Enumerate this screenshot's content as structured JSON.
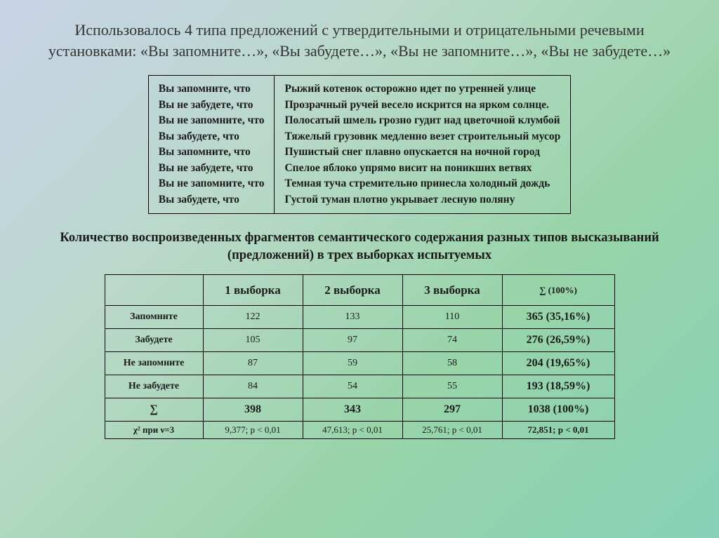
{
  "title": "Использовалось 4 типа предложений с утвердительными и отрицательными речевыми установками: «Вы запомните…», «Вы забудете…», «Вы не запомните…», «Вы не забудете…»",
  "sentences": {
    "prompts": [
      "Вы запомните, что",
      "Вы не забудете, что",
      "Вы не запомните, что",
      "Вы забудете, что",
      "Вы запомните, что",
      "Вы не забудете, что",
      "Вы не запомните, что",
      "Вы забудете, что"
    ],
    "content": [
      "Рыжий котенок осторожно идет по утренней улице",
      "Прозрачный ручей весело искрится на ярком солнце.",
      "Полосатый шмель грозно гудит над цветочной клумбой",
      "Тяжелый грузовик медленно везет строительный мусор",
      "Пушистый снег плавно опускается на ночной город",
      "Спелое яблоко упрямо висит на поникших ветвях",
      "Темная туча стремительно принесла холодный дождь",
      "Густой туман плотно укрывает лесную поляну"
    ]
  },
  "subtitle": "Количество воспроизведенных фрагментов семантического содержания разных типов высказываний (предложений) в трех выборках испытуемых",
  "datatable": {
    "headers": [
      "1 выборка",
      "2 выборка",
      "3 выборка"
    ],
    "sum_header": "∑ (100%)",
    "rows": [
      {
        "label": "Запомните",
        "v": [
          "122",
          "133",
          "110"
        ],
        "sum": "365 (35,16%)"
      },
      {
        "label": "Забудете",
        "v": [
          "105",
          "97",
          "74"
        ],
        "sum": "276 (26,59%)"
      },
      {
        "label": "Не запомните",
        "v": [
          "87",
          "59",
          "58"
        ],
        "sum": "204 (19,65%)"
      },
      {
        "label": "Не забудете",
        "v": [
          "84",
          "54",
          "55"
        ],
        "sum": "193 (18,59%)"
      }
    ],
    "totals": {
      "label": "∑",
      "v": [
        "398",
        "343",
        "297"
      ],
      "sum": "1038 (100%)"
    },
    "chi": {
      "label": "χ² при ν=3",
      "v": [
        "9,377; p < 0,01",
        "47,613; p < 0,01",
        "25,761; p < 0,01"
      ],
      "sum": "72,851; p < 0,01"
    }
  }
}
